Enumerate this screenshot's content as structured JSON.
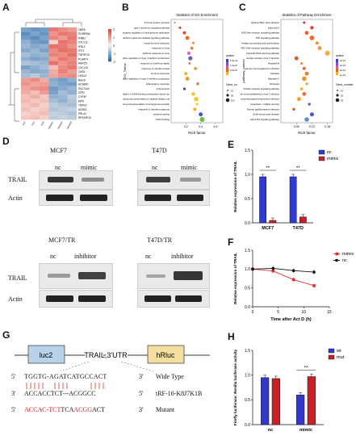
{
  "panels": {
    "A": "A",
    "B": "B",
    "C": "C",
    "D": "D",
    "E": "E",
    "F": "F",
    "G": "G",
    "H": "H"
  },
  "heatmap": {
    "genes": [
      "OBP6",
      "PLSRRN4",
      "IFNB1",
      "CXCL11",
      "IFNL1",
      "IFIT1",
      "TNFSF10",
      "PLAAT4",
      "HERC5",
      "CXCL10",
      "OASL",
      "OASL2",
      "BSGS",
      "ACSB00",
      "SULT1A4",
      "ZFP2",
      "CYP4F",
      "MPS",
      "TDRG2",
      "AGR2C",
      "PRLA1",
      "RPS29P10"
    ],
    "samples": [
      "nc1",
      "nc2",
      "nc3",
      "mimic1",
      "mimic2",
      "mimic3"
    ],
    "legend_ticks": [
      "2",
      "1",
      "0",
      "-1",
      "-2"
    ],
    "colors": {
      "high": "#e3453a",
      "mid": "#f7f3ee",
      "low": "#2b6cb0"
    }
  },
  "go": {
    "title": "Statistics of GO Enrichment",
    "terms": [
      "immune system process",
      "type I interferon signaling pathway",
      "negative regulation of viral genome replication",
      "interferon-gamma-mediated signaling pathway",
      "innate immune response",
      "response to virus",
      "defense response to virus",
      "positive regulation of type I interferon production",
      "response to interferon-alpha",
      "response to interferon-beta",
      "immune response",
      "negative regulation of type I interferon production",
      "inflammatory response",
      "viral process",
      "positive regulation of DNA-binding transcription factor act",
      "antigen processing and presentation of peptide antigen via",
      "antigen processing and presentation of endogenous peptide",
      "response to interferon-gamma",
      "cytokine activity",
      "TAP1 binding"
    ],
    "rich": [
      0.05,
      0.12,
      0.18,
      0.22,
      0.3,
      0.28,
      0.24,
      0.26,
      0.25,
      0.33,
      0.2,
      0.22,
      0.36,
      0.18,
      0.3,
      0.34,
      0.35,
      0.32,
      0.4,
      0.42
    ],
    "xlabel": "Rich factor",
    "ylabel": "GO_Terms",
    "xticks": [
      "0.2",
      "0.4",
      "0.6"
    ],
    "legend": {
      "title": "qvalue",
      "levels": [
        "1.5e-10",
        "1.0e-07",
        "5.0e-07"
      ],
      "size_title": "Gene_number",
      "sizes": [
        "10",
        "50",
        "100"
      ]
    }
  },
  "kegg": {
    "title": "Statistics of Pathway Enrichment",
    "terms": [
      "Epstein-Barr virus infection",
      "Influenza A",
      "NOD-like receptor signaling pathway",
      "TNF signaling pathway",
      "Antigen processing and presentation",
      "RIG-I-like receptor signaling pathway",
      "Cytosolic DNA-sensing pathway",
      "Herpes simplex virus 1 infection",
      "Hepatitis B",
      "Human cytomegalovirus infection",
      "Measles",
      "Hepatitis C",
      "Pertussis",
      "Toll-like receptor signaling pathway",
      "Human immunodeficiency virus 1 infection",
      "Kaposi sarcoma-associated herpesvirus infection",
      "Apoptosis - multiple species",
      "Human papillomavirus infection",
      "Graft-versus-host disease",
      "Jak-STAT signaling pathway"
    ],
    "rich": [
      0.09,
      0.12,
      0.1,
      0.12,
      0.14,
      0.15,
      0.18,
      0.06,
      0.08,
      0.09,
      0.1,
      0.09,
      0.1,
      0.08,
      0.09,
      0.07,
      0.11,
      0.05,
      0.12,
      0.1
    ],
    "xlabel": "Rich factor",
    "ylabel": "pathway_names",
    "xticks": [
      "0.06",
      "0.12",
      "0.18"
    ],
    "legend": {
      "title": "qvalue",
      "levels": [
        "4e-10",
        "3e-10",
        "2e-10",
        "1e-10"
      ],
      "size_title": "Gene_number",
      "sizes": [
        "10",
        "20",
        "30"
      ]
    }
  },
  "western_top": {
    "left": {
      "cell": "MCF7",
      "lanes": [
        "nc",
        "mimic"
      ]
    },
    "right": {
      "cell": "T47D",
      "lanes": [
        "nc",
        "mimic"
      ]
    },
    "rows": [
      "TRAIL",
      "Actin"
    ]
  },
  "western_bottom": {
    "left": {
      "cell": "MCF7/TR",
      "lanes": [
        "nc",
        "inhibitor"
      ]
    },
    "right": {
      "cell": "T47D/TR",
      "lanes": [
        "nc",
        "inhibitor"
      ]
    },
    "rows": [
      "TRAIL",
      "Actin"
    ]
  },
  "chart_data": [
    {
      "type": "bar",
      "panel": "E",
      "categories": [
        "MCF7",
        "T47D"
      ],
      "series": [
        {
          "name": "nc",
          "values": [
            0.95,
            0.95
          ],
          "color": "#2f3bd6"
        },
        {
          "name": "mimic",
          "values": [
            0.05,
            0.12
          ],
          "color": "#cc1f2d"
        }
      ],
      "ylabel": "Relative expression of TRAIL",
      "ylim": [
        0,
        1.5
      ],
      "yticks": [
        "0.0",
        "0.5",
        "1.0",
        "1.5"
      ],
      "significance": [
        "**",
        "**"
      ]
    },
    {
      "type": "line",
      "panel": "F",
      "x": [
        0,
        4,
        8,
        12
      ],
      "series": [
        {
          "name": "mimic",
          "values": [
            1.0,
            0.95,
            0.72,
            0.56
          ],
          "color": "#e03131"
        },
        {
          "name": "nc",
          "values": [
            1.0,
            1.02,
            0.96,
            0.92
          ],
          "color": "#111111"
        }
      ],
      "xlabel": "Time after Act D  (h)",
      "ylabel": "Relative expression of TRAIL",
      "ylim": [
        0,
        1.5
      ],
      "xlim": [
        0,
        15
      ],
      "yticks": [
        "0.0",
        "0.5",
        "1.0",
        "1.5"
      ],
      "xticks": [
        "0",
        "5",
        "10",
        "15"
      ]
    },
    {
      "type": "bar",
      "panel": "H",
      "categories": [
        "nc",
        "mimic"
      ],
      "series": [
        {
          "name": "wt",
          "values": [
            0.95,
            0.6
          ],
          "color": "#3338c9"
        },
        {
          "name": "mut",
          "values": [
            0.93,
            0.97
          ],
          "color": "#c91f27"
        }
      ],
      "ylabel": "Firefly luciferase: Renilla luciferase activity",
      "ylim": [
        0,
        1.5
      ],
      "yticks": [
        "0.0",
        "0.5",
        "1.0",
        "1.5"
      ],
      "significance": [
        "",
        "**"
      ]
    }
  ],
  "construct": {
    "luc2": "luc2",
    "utr": "TRAIL,3'UTR",
    "hrluc": "hRluc",
    "wild_5": "5'",
    "wild_seq": "TGGTG-AGATCATGCCACT",
    "wild_3": "3'",
    "wild_label": "Wide Type",
    "trf_5": "3'",
    "trf_seq": "ACCACCTCT---ACGGCC",
    "trf_3": "5'",
    "trf_label": "tRF-16-K8J7K1B",
    "mut_5": "5'",
    "mut_seq_a": "ACCAC",
    "mut_seq_b": "-",
    "mut_seq_c": "TCT",
    "mut_seq_d": "TCA",
    "mut_seq_e": "ACGG",
    "mut_seq_f": "ACT",
    "mut_3": "3'",
    "mut_label": "Mutant"
  }
}
